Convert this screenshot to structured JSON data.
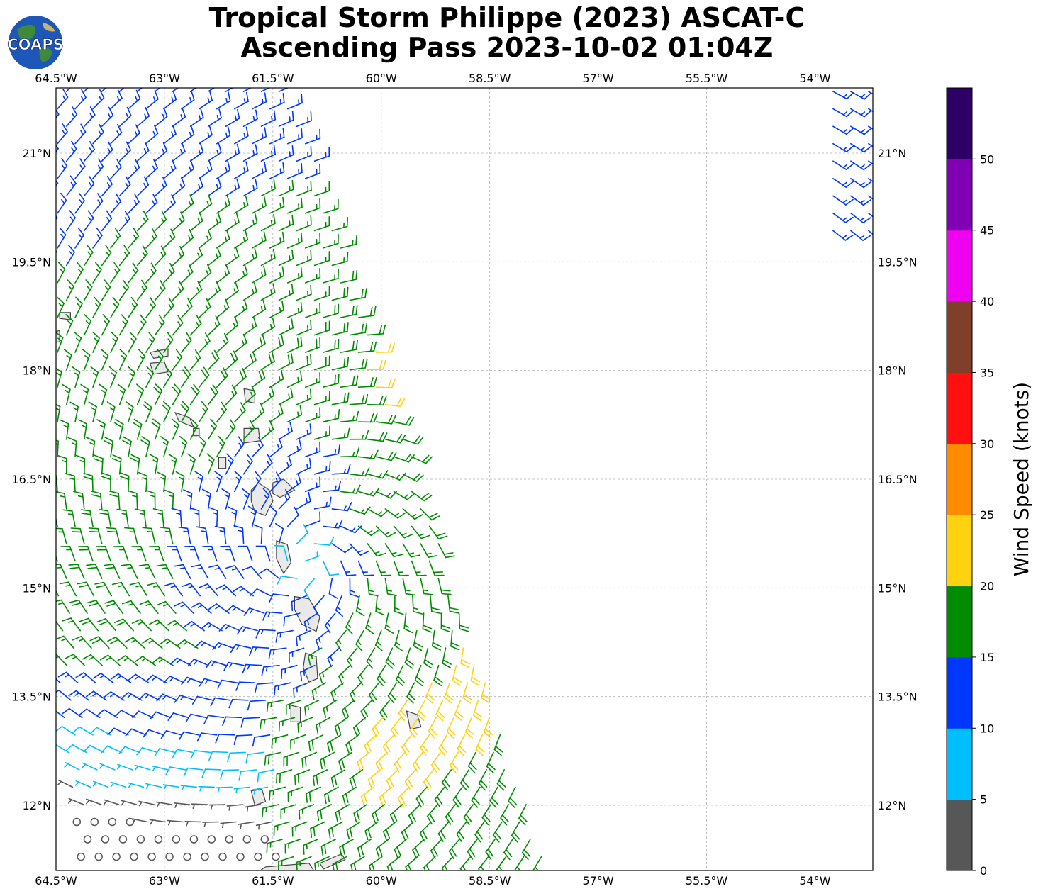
{
  "title": {
    "line1": "Tropical Storm Philippe (2023) ASCAT-C",
    "line2": "Ascending Pass 2023-10-02 01:04Z"
  },
  "logo": {
    "text": "COAPS"
  },
  "axes": {
    "lon_labels": [
      "64.5°W",
      "63°W",
      "61.5°W",
      "60°W",
      "58.5°W",
      "57°W",
      "55.5°W",
      "54°W"
    ],
    "lon_values": [
      -64.5,
      -63,
      -61.5,
      -60,
      -58.5,
      -57,
      -55.5,
      -54
    ],
    "lat_labels": [
      "21°N",
      "19.5°N",
      "18°N",
      "16.5°N",
      "15°N",
      "13.5°N",
      "12°N"
    ],
    "lat_values": [
      21,
      19.5,
      18,
      16.5,
      15,
      13.5,
      12
    ],
    "lon_range": [
      -64.5,
      -53.2
    ],
    "lat_range": [
      11.1,
      21.9
    ]
  },
  "colorbar": {
    "label": "Wind Speed (knots)",
    "tick_labels": [
      "0",
      "5",
      "10",
      "15",
      "20",
      "25",
      "30",
      "35",
      "40",
      "45",
      "50"
    ],
    "colors": [
      "#575757",
      "#00bfff",
      "#0037ff",
      "#008c00",
      "#ffd20f",
      "#ff8c00",
      "#ff0f0f",
      "#7f3f28",
      "#f000f0",
      "#8000b4",
      "#2c0064"
    ]
  },
  "storm_center": {
    "lon": -61.05,
    "lat": 15.35
  }
}
